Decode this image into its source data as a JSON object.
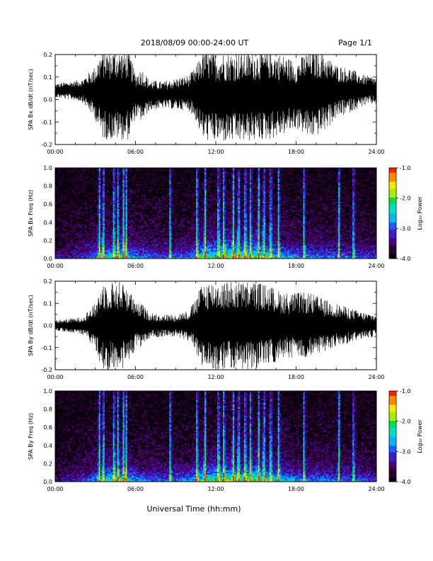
{
  "header": {
    "title": "2018/08/09  00:00-24:00 UT",
    "page": "Page 1/1"
  },
  "xlabel": "Universal Time (hh:mm)",
  "colorscale": [
    "#000000",
    "#2b0030",
    "#4a007a",
    "#3a1fc8",
    "#1d5cff",
    "#00b7ff",
    "#00e0c0",
    "#00e040",
    "#a8f000",
    "#ffea00",
    "#ff8a00",
    "#ff2000"
  ],
  "chart_data": [
    {
      "type": "line",
      "ylabel": "SPA Bx dB/dt (nT/sec)",
      "xlim": [
        0,
        24
      ],
      "ylim": [
        -0.2,
        0.2
      ],
      "xticks": [
        "00:00",
        "06:00",
        "12:00",
        "18:00",
        "24:00"
      ],
      "yticks": [
        "-0.2",
        "-0.1",
        "0.0",
        "0.1",
        "0.2"
      ],
      "series": [
        {
          "amplitude_envelope": {
            "x": [
              0,
              1,
              2,
              3,
              3.5,
              4,
              4.5,
              5,
              5.5,
              6,
              6.5,
              7,
              8,
              9,
              10,
              10.5,
              11,
              12,
              13,
              14,
              15,
              16,
              17,
              18,
              19,
              20,
              21,
              22,
              23,
              24
            ],
            "y": [
              0.03,
              0.04,
              0.05,
              0.12,
              0.2,
              0.2,
              0.2,
              0.2,
              0.2,
              0.1,
              0.12,
              0.07,
              0.06,
              0.07,
              0.08,
              0.12,
              0.2,
              0.2,
              0.2,
              0.2,
              0.2,
              0.2,
              0.18,
              0.15,
              0.2,
              0.18,
              0.12,
              0.1,
              0.07,
              0.06
            ]
          },
          "baseline": {
            "x": [
              0,
              2,
              3,
              4,
              5,
              6,
              8,
              10,
              11,
              12,
              14,
              16,
              18,
              20,
              22,
              24
            ],
            "y": [
              0.04,
              0.04,
              0.03,
              0.02,
              0.02,
              0.02,
              0.02,
              0.03,
              0.02,
              0.01,
              0.01,
              0.02,
              0.02,
              0.03,
              0.04,
              0.04
            ]
          }
        }
      ]
    },
    {
      "type": "heatmap",
      "ylabel": "SPA Bx Freq (Hz)",
      "xlim": [
        0,
        24
      ],
      "ylim": [
        0,
        1.0
      ],
      "xticks": [
        "00:00",
        "06:00",
        "12:00",
        "18:00",
        "24:00"
      ],
      "yticks": [
        "0.0",
        "0.2",
        "0.4",
        "0.6",
        "0.8",
        "1.0"
      ],
      "colorbar": {
        "label": "Log₁₀ Power",
        "range": [
          -4.0,
          -1.0
        ],
        "ticks": [
          "-1.0",
          "-2.0",
          "-3.0",
          "-4.0"
        ]
      },
      "burst_times": [
        3.3,
        3.6,
        4.4,
        4.7,
        5.1,
        5.3,
        8.6,
        10.6,
        11.2,
        12.2,
        12.6,
        13.3,
        13.7,
        14.2,
        14.6,
        15.2,
        15.6,
        16.1,
        16.7,
        18.6,
        21.2,
        22.3
      ],
      "activity_envelope": {
        "x": [
          0,
          2,
          3,
          4,
          5,
          6,
          8,
          10,
          11,
          12,
          13,
          14,
          15,
          16,
          17,
          18,
          20,
          22,
          24
        ],
        "y": [
          0.25,
          0.35,
          0.55,
          0.75,
          0.75,
          0.55,
          0.45,
          0.5,
          0.8,
          0.85,
          0.9,
          0.85,
          0.85,
          0.75,
          0.65,
          0.55,
          0.5,
          0.45,
          0.4
        ]
      }
    },
    {
      "type": "line",
      "ylabel": "SPA By dB/dt (nT/sec)",
      "xlim": [
        0,
        24
      ],
      "ylim": [
        -0.2,
        0.2
      ],
      "xticks": [
        "00:00",
        "06:00",
        "12:00",
        "18:00",
        "24:00"
      ],
      "yticks": [
        "-0.2",
        "-0.1",
        "0.0",
        "0.1",
        "0.2"
      ],
      "series": [
        {
          "amplitude_envelope": {
            "x": [
              0,
              1,
              2,
              3,
              3.5,
              4,
              4.5,
              5,
              5.5,
              6,
              6.5,
              7,
              8,
              9,
              10,
              10.5,
              11,
              12,
              13,
              14,
              15,
              16,
              17,
              18,
              19,
              20,
              21,
              22,
              23,
              24
            ],
            "y": [
              0.025,
              0.03,
              0.04,
              0.1,
              0.2,
              0.2,
              0.2,
              0.2,
              0.18,
              0.1,
              0.1,
              0.06,
              0.05,
              0.05,
              0.07,
              0.12,
              0.2,
              0.2,
              0.2,
              0.2,
              0.2,
              0.18,
              0.15,
              0.15,
              0.15,
              0.12,
              0.1,
              0.08,
              0.06,
              0.05
            ]
          },
          "baseline": {
            "x": [
              0,
              4,
              8,
              12,
              16,
              20,
              24
            ],
            "y": [
              0.0,
              0.0,
              0.0,
              0.0,
              0.0,
              0.0,
              0.0
            ]
          }
        }
      ]
    },
    {
      "type": "heatmap",
      "ylabel": "SPA By Freq (Hz)",
      "xlim": [
        0,
        24
      ],
      "ylim": [
        0,
        1.0
      ],
      "xticks": [
        "00:00",
        "06:00",
        "12:00",
        "18:00",
        "24:00"
      ],
      "yticks": [
        "0.0",
        "0.2",
        "0.4",
        "0.6",
        "0.8",
        "1.0"
      ],
      "colorbar": {
        "label": "Log₁₀ Power",
        "range": [
          -4.0,
          -1.0
        ],
        "ticks": [
          "-1.0",
          "-2.0",
          "-3.0",
          "-4.0"
        ]
      },
      "burst_times": [
        3.3,
        3.6,
        4.4,
        4.7,
        5.1,
        5.3,
        8.6,
        10.6,
        11.2,
        12.2,
        12.6,
        13.3,
        13.7,
        14.2,
        14.6,
        15.2,
        15.6,
        16.1,
        16.7,
        18.6,
        21.2,
        22.3
      ],
      "activity_envelope": {
        "x": [
          0,
          2,
          3,
          4,
          5,
          6,
          8,
          10,
          11,
          12,
          13,
          14,
          15,
          16,
          17,
          18,
          20,
          22,
          24
        ],
        "y": [
          0.25,
          0.35,
          0.55,
          0.75,
          0.75,
          0.55,
          0.45,
          0.5,
          0.8,
          0.85,
          0.9,
          0.85,
          0.85,
          0.75,
          0.65,
          0.55,
          0.5,
          0.45,
          0.4
        ]
      }
    }
  ]
}
